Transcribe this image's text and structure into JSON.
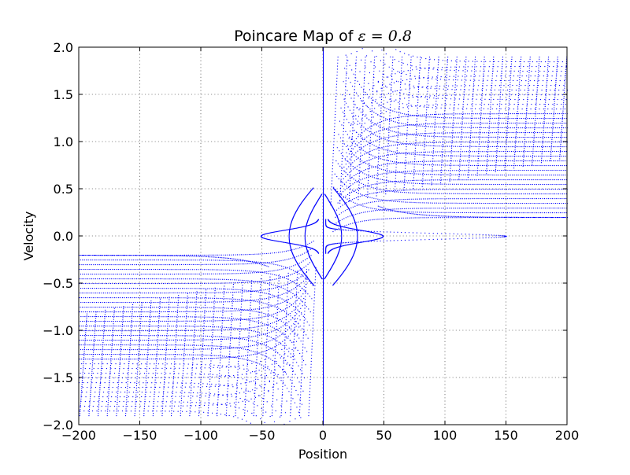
{
  "chart_data": {
    "type": "scatter",
    "title": "Poincare Map of ",
    "title_math": "ε = 0.8",
    "xlabel": "Position",
    "ylabel": "Velocity",
    "xlim": [
      -200,
      200
    ],
    "ylim": [
      -2,
      2
    ],
    "grid": true,
    "x_ticks": [
      -200,
      -150,
      -100,
      -50,
      0,
      50,
      100,
      150,
      200
    ],
    "y_ticks": [
      -2.0,
      -1.5,
      -1.0,
      -0.5,
      0.0,
      0.5,
      1.0,
      1.5,
      2.0
    ],
    "x_tick_labels": [
      "−200",
      "−150",
      "−100",
      "−50",
      "0",
      "50",
      "100",
      "150",
      "200"
    ],
    "y_tick_labels": [
      "−2.0",
      "−1.5",
      "−1.0",
      "−0.5",
      "0.0",
      "0.5",
      "1.0",
      "1.5",
      "2.0"
    ],
    "point_color": "#0000ff",
    "features": {
      "vertical_line_x": 0,
      "outer_separatrix_peak_x": 148,
      "inner_lobe_peak_x": 46,
      "left_lobe_peak_x": -48,
      "right_band_asymptote_y": 0.2,
      "left_band_asymptote_y": -0.2,
      "band_edge_y": 1.3
    }
  }
}
